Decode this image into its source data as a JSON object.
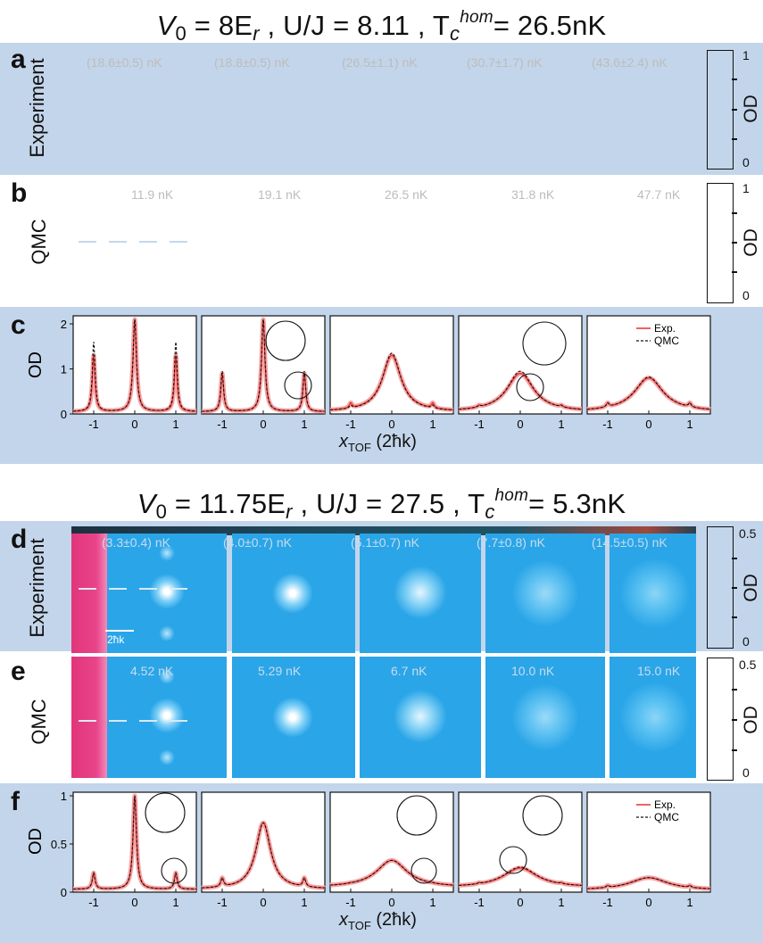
{
  "header_top": {
    "v0": "V",
    "v0_sub": "0",
    "v0_val": " = 8E",
    "v0_unit_sub": "r",
    "uj": " ,  U/J = 8.11 ,  T",
    "tc_sub": "c",
    "tc_sup": "hom",
    "tc_val": "= 26.5nK"
  },
  "header_bottom": {
    "v0": "V",
    "v0_sub": "0",
    "v0_val": " = 11.75E",
    "v0_unit_sub": "r",
    "uj": " ,  U/J = 27.5 ,  T",
    "tc_sub": "c",
    "tc_sup": "hom",
    "tc_val": "= 5.3nK"
  },
  "panels": {
    "a": {
      "letter": "a",
      "row_label": "Experiment",
      "temps": [
        "(18.6±0.5) nK",
        "(18.8±0.5) nK",
        "(26.5±1.1) nK",
        "(30.7±1.7) nK",
        "(43.6±2.4) nK"
      ]
    },
    "b": {
      "letter": "b",
      "row_label": "QMC",
      "temps": [
        "11.9 nK",
        "19.1 nK",
        "26.5 nK",
        "31.8 nK",
        "47.7 nK"
      ]
    },
    "c": {
      "letter": "c",
      "ylabel": "OD",
      "xlabel_main": "x",
      "xlabel_sub": "TOF",
      "xlabel_unit": " (2ħk)",
      "legend": [
        "Exp.",
        "QMC"
      ]
    },
    "d": {
      "letter": "d",
      "row_label": "Experiment",
      "scalebar": "2ħk",
      "temps": [
        "(3.3±0.4) nK",
        "(4.0±0.7) nK",
        "(5.1±0.7) nK",
        "(7.7±0.8) nK",
        "(14.5±0.5) nK"
      ]
    },
    "e": {
      "letter": "e",
      "row_label": "QMC",
      "temps": [
        "4.52 nK",
        "5.29 nK",
        "6.7 nK",
        "10.0 nK",
        "15.0 nK"
      ]
    },
    "f": {
      "letter": "f",
      "ylabel": "OD",
      "xlabel_main": "x",
      "xlabel_sub": "TOF",
      "xlabel_unit": " (2ħk)",
      "legend": [
        "Exp.",
        "QMC"
      ]
    }
  },
  "colorbars": {
    "top": {
      "label": "OD",
      "ticks": [
        "1",
        "0"
      ]
    },
    "bottom": {
      "label": "OD",
      "ticks": [
        "0.5",
        "0"
      ]
    }
  },
  "chart_data": [
    {
      "type": "line",
      "panel": "c1",
      "x": [
        -1.5,
        -1,
        -0.5,
        0,
        0.5,
        1,
        1.5
      ],
      "series": [
        {
          "name": "Exp.",
          "values": [
            0.05,
            1.3,
            0.3,
            2.1,
            0.3,
            1.3,
            0.05
          ]
        },
        {
          "name": "QMC",
          "values": [
            0.05,
            1.6,
            0.3,
            2.1,
            0.3,
            1.6,
            0.05
          ]
        }
      ],
      "ylim": [
        0,
        2.1
      ],
      "xticks": [
        -1,
        0,
        1
      ],
      "yticks": [
        0,
        1,
        2
      ]
    },
    {
      "type": "line",
      "panel": "c2",
      "x": [
        -1.5,
        -1,
        -0.5,
        0,
        0.5,
        1,
        1.5
      ],
      "series": [
        {
          "name": "Exp.",
          "values": [
            0.05,
            0.9,
            0.5,
            2.1,
            0.5,
            0.9,
            0.05
          ]
        },
        {
          "name": "QMC",
          "values": [
            0.05,
            0.95,
            0.5,
            2.1,
            0.5,
            0.95,
            0.05
          ]
        }
      ],
      "ylim": [
        0,
        2.1
      ]
    },
    {
      "type": "line",
      "panel": "c3",
      "x": [
        -1.5,
        -1,
        -0.5,
        0,
        0.5,
        1,
        1.5
      ],
      "series": [
        {
          "name": "Exp.",
          "values": [
            0.05,
            0.25,
            0.6,
            1.3,
            0.6,
            0.25,
            0.05
          ]
        },
        {
          "name": "QMC",
          "values": [
            0.05,
            0.2,
            0.6,
            1.35,
            0.6,
            0.2,
            0.05
          ]
        }
      ],
      "ylim": [
        0,
        2.1
      ]
    },
    {
      "type": "line",
      "panel": "c4",
      "x": [
        -1.5,
        -1,
        -0.5,
        0,
        0.5,
        1,
        1.5
      ],
      "series": [
        {
          "name": "Exp.",
          "values": [
            0.05,
            0.2,
            0.5,
            0.9,
            0.55,
            0.2,
            0.05
          ]
        },
        {
          "name": "QMC",
          "values": [
            0.05,
            0.2,
            0.5,
            0.95,
            0.6,
            0.2,
            0.05
          ]
        }
      ],
      "ylim": [
        0,
        2.1
      ]
    },
    {
      "type": "line",
      "panel": "c5",
      "x": [
        -1.5,
        -1,
        -0.5,
        0,
        0.5,
        1,
        1.5
      ],
      "series": [
        {
          "name": "Exp.",
          "values": [
            0.05,
            0.25,
            0.55,
            0.8,
            0.55,
            0.25,
            0.05
          ]
        },
        {
          "name": "QMC",
          "values": [
            0.05,
            0.25,
            0.55,
            0.82,
            0.55,
            0.25,
            0.05
          ]
        }
      ],
      "ylim": [
        0,
        2.1
      ]
    },
    {
      "type": "line",
      "panel": "f1",
      "x": [
        -1.5,
        -1,
        -0.5,
        0,
        0.5,
        1,
        1.5
      ],
      "series": [
        {
          "name": "Exp.",
          "values": [
            0.03,
            0.2,
            0.1,
            1.0,
            0.1,
            0.2,
            0.03
          ]
        },
        {
          "name": "QMC",
          "values": [
            0.03,
            0.2,
            0.1,
            1.0,
            0.1,
            0.2,
            0.03
          ]
        }
      ],
      "ylim": [
        0,
        1
      ],
      "xticks": [
        -1,
        0,
        1
      ],
      "yticks": [
        0,
        0.5,
        1
      ]
    },
    {
      "type": "line",
      "panel": "f2",
      "x": [
        -1.5,
        -1,
        -0.5,
        0,
        0.5,
        1,
        1.5
      ],
      "series": [
        {
          "name": "Exp.",
          "values": [
            0.03,
            0.15,
            0.15,
            0.72,
            0.15,
            0.15,
            0.03
          ]
        },
        {
          "name": "QMC",
          "values": [
            0.03,
            0.15,
            0.15,
            0.72,
            0.15,
            0.15,
            0.03
          ]
        }
      ],
      "ylim": [
        0,
        1
      ]
    },
    {
      "type": "line",
      "panel": "f3",
      "x": [
        -1.5,
        -1,
        -0.5,
        0,
        0.5,
        1,
        1.5
      ],
      "series": [
        {
          "name": "Exp.",
          "values": [
            0.05,
            0.1,
            0.2,
            0.33,
            0.15,
            0.08,
            0.03
          ]
        },
        {
          "name": "QMC",
          "values": [
            0.05,
            0.1,
            0.2,
            0.33,
            0.15,
            0.08,
            0.03
          ]
        }
      ],
      "ylim": [
        0,
        1
      ]
    },
    {
      "type": "line",
      "panel": "f4",
      "x": [
        -1.5,
        -1,
        -0.5,
        0,
        0.5,
        1,
        1.5
      ],
      "series": [
        {
          "name": "Exp.",
          "values": [
            0.05,
            0.1,
            0.18,
            0.25,
            0.18,
            0.1,
            0.05
          ]
        },
        {
          "name": "QMC",
          "values": [
            0.05,
            0.1,
            0.18,
            0.26,
            0.18,
            0.1,
            0.05
          ]
        }
      ],
      "ylim": [
        0,
        1
      ]
    },
    {
      "type": "line",
      "panel": "f5",
      "x": [
        -1.5,
        -1,
        -0.5,
        0,
        0.5,
        1,
        1.5
      ],
      "series": [
        {
          "name": "Exp.",
          "values": [
            0.02,
            0.07,
            0.12,
            0.15,
            0.12,
            0.07,
            0.02
          ]
        },
        {
          "name": "QMC",
          "values": [
            0.02,
            0.07,
            0.12,
            0.15,
            0.12,
            0.07,
            0.02
          ]
        }
      ],
      "ylim": [
        0,
        1
      ]
    }
  ]
}
